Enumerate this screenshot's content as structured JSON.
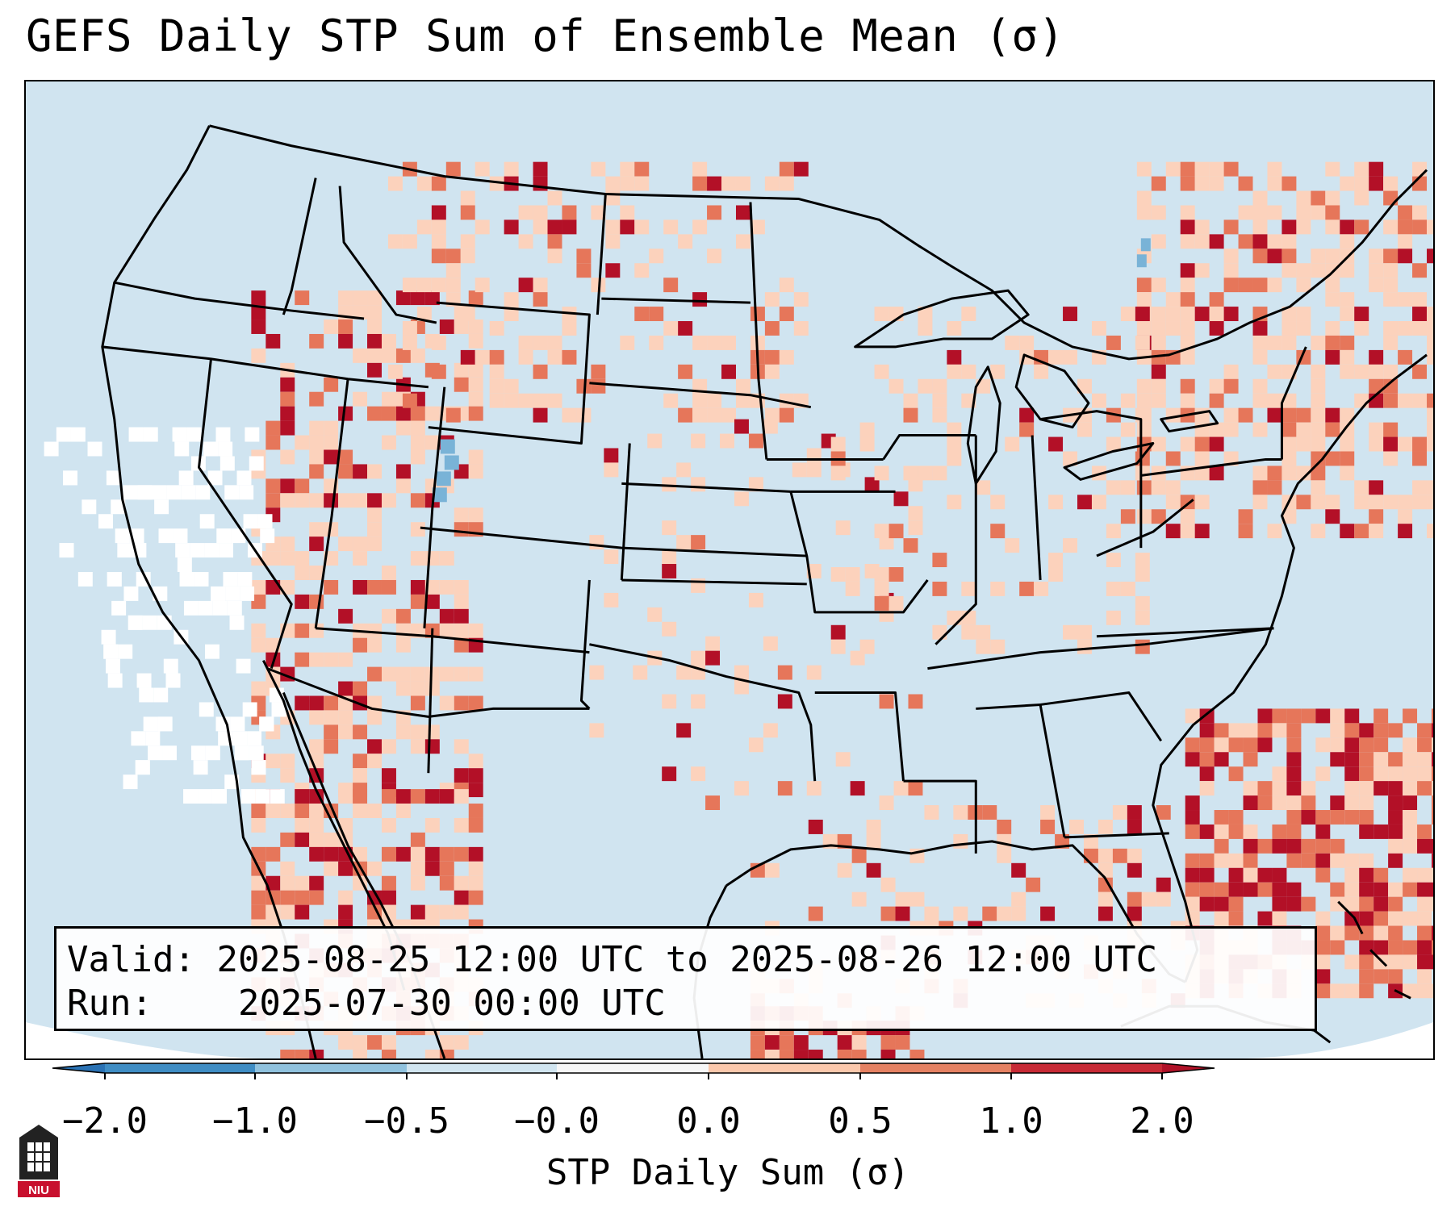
{
  "title": "GEFS Daily STP Sum of Ensemble Mean (σ)",
  "info": {
    "valid_label": "Valid:",
    "valid_value": "2025-08-25 12:00 UTC to 2025-08-26 12:00 UTC",
    "run_label": "Run:",
    "run_value": "2025-07-30 00:00 UTC"
  },
  "colorbar": {
    "label": "STP Daily Sum (σ)",
    "ticks": [
      "−2.0",
      "−1.0",
      "−0.5",
      "−0.0",
      "0.0",
      "0.5",
      "1.0",
      "2.0"
    ],
    "bins": [
      {
        "color": "#2a72b4"
      },
      {
        "color": "#3f8dc4"
      },
      {
        "color": "#90c2de"
      },
      {
        "color": "#d1e5f0"
      },
      {
        "color": "#f7f7f7"
      },
      {
        "color": "#fbc8ac"
      },
      {
        "color": "#e58162"
      },
      {
        "color": "#c72a35"
      },
      {
        "color": "#b01228"
      }
    ]
  },
  "logo": {
    "text": "NIU"
  },
  "colors": {
    "ocean": "#d0e4f0",
    "light_positive": "#fcd2bc",
    "medium_positive": "#e6765a",
    "strong_positive": "#b31027",
    "negative": "#79b3d7",
    "neutral": "#ffffff"
  }
}
